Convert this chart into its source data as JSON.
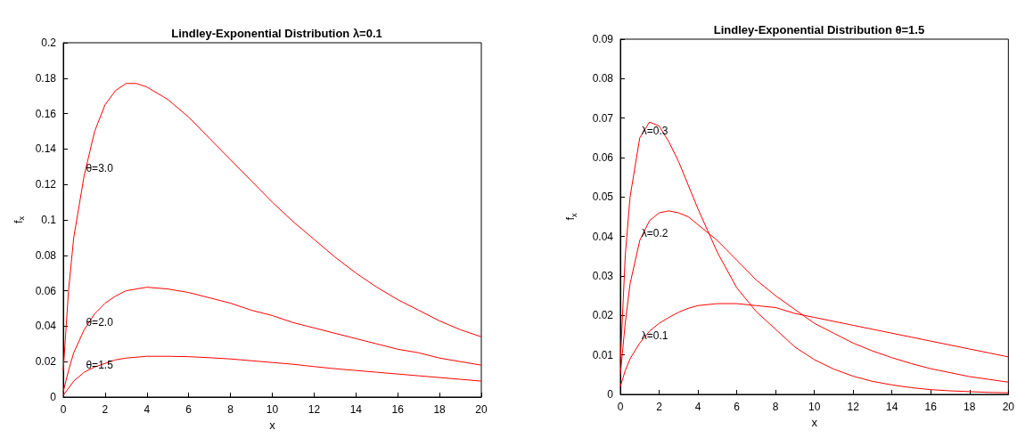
{
  "chart_data": [
    {
      "type": "line",
      "title": "Lindley-Exponential Distribution λ=0.1",
      "xlabel": "x",
      "ylabel": "f$_{x}$",
      "x": [
        0,
        0.25,
        0.5,
        1,
        1.5,
        2,
        2.5,
        3,
        3.5,
        4,
        5,
        6,
        7,
        8,
        9,
        10,
        11,
        12,
        13,
        14,
        15,
        16,
        17,
        18,
        19,
        20
      ],
      "series": [
        {
          "name": "θ=3.0",
          "color": "#ff0000",
          "values": [
            0.015,
            0.06,
            0.09,
            0.125,
            0.15,
            0.165,
            0.173,
            0.177,
            0.177,
            0.175,
            0.168,
            0.158,
            0.146,
            0.134,
            0.122,
            0.11,
            0.099,
            0.089,
            0.079,
            0.07,
            0.062,
            0.055,
            0.049,
            0.043,
            0.038,
            0.034
          ]
        },
        {
          "name": "θ=2.0",
          "color": "#ff0000",
          "values": [
            0.003,
            0.015,
            0.025,
            0.038,
            0.047,
            0.053,
            0.057,
            0.06,
            0.061,
            0.062,
            0.061,
            0.059,
            0.056,
            0.053,
            0.049,
            0.046,
            0.042,
            0.039,
            0.036,
            0.033,
            0.03,
            0.027,
            0.025,
            0.022,
            0.02,
            0.018
          ]
        },
        {
          "name": "θ=1.5",
          "color": "#ff0000",
          "values": [
            0.001,
            0.005,
            0.009,
            0.014,
            0.017,
            0.019,
            0.021,
            0.022,
            0.0225,
            0.023,
            0.023,
            0.0228,
            0.0222,
            0.0215,
            0.0205,
            0.0195,
            0.0185,
            0.0172,
            0.016,
            0.015,
            0.014,
            0.013,
            0.012,
            0.011,
            0.01,
            0.009
          ]
        }
      ],
      "xlim": [
        0,
        20
      ],
      "xticks": [
        0,
        2,
        4,
        6,
        8,
        10,
        12,
        14,
        16,
        18,
        20
      ],
      "ylim": [
        0,
        0.2
      ],
      "yticks": [
        0,
        0.02,
        0.04,
        0.06,
        0.08,
        0.1,
        0.12,
        0.14,
        0.16,
        0.18,
        0.2
      ],
      "grid": false
    },
    {
      "type": "line",
      "title": "Lindley-Exponential Distribution θ=1.5",
      "xlabel": "x",
      "ylabel": "f$_{x}$",
      "x": [
        0,
        0.25,
        0.5,
        1,
        1.5,
        2,
        2.5,
        3,
        3.5,
        4,
        5,
        6,
        7,
        8,
        9,
        10,
        11,
        12,
        13,
        14,
        15,
        16,
        17,
        18,
        19,
        20
      ],
      "series": [
        {
          "name": "λ=0.3",
          "color": "#ff0000",
          "values": [
            0.008,
            0.035,
            0.05,
            0.065,
            0.069,
            0.068,
            0.064,
            0.059,
            0.053,
            0.047,
            0.036,
            0.027,
            0.021,
            0.0165,
            0.012,
            0.0088,
            0.0064,
            0.0046,
            0.0033,
            0.0024,
            0.0017,
            0.0012,
            0.0009,
            0.0007,
            0.0005,
            0.0004
          ]
        },
        {
          "name": "λ=0.2",
          "color": "#ff0000",
          "values": [
            0.005,
            0.018,
            0.028,
            0.039,
            0.044,
            0.046,
            0.0465,
            0.046,
            0.045,
            0.043,
            0.039,
            0.034,
            0.029,
            0.025,
            0.0215,
            0.018,
            0.0155,
            0.013,
            0.011,
            0.0093,
            0.0078,
            0.0065,
            0.0055,
            0.0045,
            0.0038,
            0.0031
          ]
        },
        {
          "name": "λ=0.1",
          "color": "#ff0000",
          "values": [
            0.002,
            0.006,
            0.009,
            0.013,
            0.016,
            0.018,
            0.0195,
            0.0208,
            0.0218,
            0.0225,
            0.023,
            0.023,
            0.0225,
            0.022,
            0.0205,
            0.0195,
            0.0185,
            0.0175,
            0.0165,
            0.0155,
            0.0145,
            0.0135,
            0.0125,
            0.0115,
            0.0105,
            0.0095
          ]
        }
      ],
      "xlim": [
        0,
        20
      ],
      "xticks": [
        0,
        2,
        4,
        6,
        8,
        10,
        12,
        14,
        16,
        18,
        20
      ],
      "ylim": [
        0,
        0.09
      ],
      "yticks": [
        0,
        0.01,
        0.02,
        0.03,
        0.04,
        0.05,
        0.06,
        0.07,
        0.08,
        0.09
      ],
      "grid": false
    }
  ]
}
